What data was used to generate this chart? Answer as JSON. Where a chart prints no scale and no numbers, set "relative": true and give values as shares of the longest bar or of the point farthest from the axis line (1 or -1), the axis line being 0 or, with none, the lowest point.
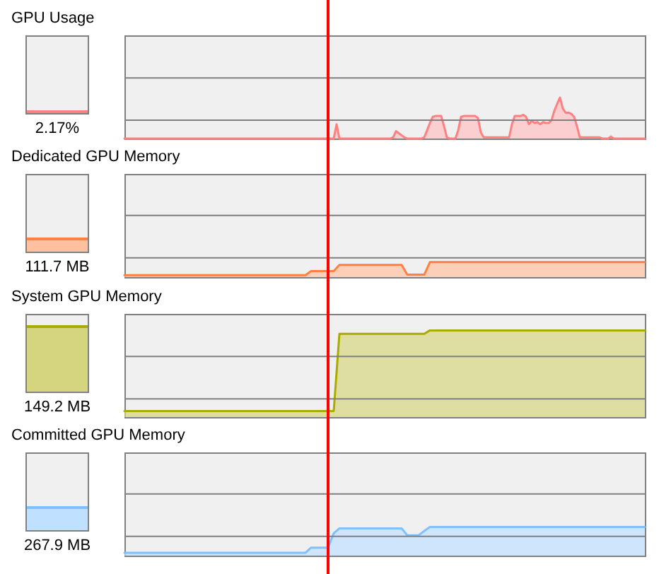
{
  "chart_data": [
    {
      "type": "area",
      "relative": true,
      "title": "GPU Usage",
      "annotations": [
        "2.17%"
      ],
      "color": "#ff8080",
      "ref_lines": [
        {
          "axis": "y",
          "value": 0.45,
          "color": "#808080"
        },
        {
          "axis": "y",
          "value": 1.48,
          "color": "#808080"
        }
      ],
      "categories": [
        null,
        null,
        null,
        null,
        null,
        null,
        null,
        null,
        null,
        null,
        null,
        null,
        null,
        null,
        null,
        null,
        null,
        null,
        null,
        null,
        null,
        null,
        null,
        null,
        null,
        null,
        null,
        null,
        null,
        null,
        null,
        null,
        null,
        null,
        null,
        null,
        null,
        null,
        null,
        null,
        null,
        null,
        null,
        null,
        null,
        null,
        null,
        null,
        null,
        null,
        null,
        null,
        null,
        null,
        null,
        null,
        null,
        null,
        null,
        null,
        null,
        null,
        null,
        null,
        null,
        null,
        null,
        null,
        null,
        null,
        null,
        null,
        null,
        null,
        null,
        null,
        null,
        null,
        null,
        null,
        null,
        null,
        null,
        null,
        null,
        null,
        null,
        null,
        null,
        null,
        null,
        null,
        null,
        null,
        null,
        null,
        null,
        null,
        null,
        null,
        null,
        null,
        null,
        null,
        null,
        null,
        null,
        null,
        null,
        null,
        null,
        null,
        null,
        null,
        null,
        null,
        null,
        null,
        null,
        null,
        null,
        null,
        null,
        null,
        null,
        null,
        null,
        null,
        null,
        null,
        null,
        null,
        null,
        null,
        null,
        null,
        null,
        null,
        null,
        null,
        null,
        null,
        null,
        null,
        null,
        null,
        null,
        null,
        null,
        null,
        null,
        null,
        null,
        null,
        null,
        null,
        null,
        null,
        null,
        null,
        null,
        null,
        null,
        null,
        null,
        null,
        null,
        null,
        null,
        null,
        null,
        null,
        null,
        null,
        null,
        null,
        null,
        null,
        null,
        null,
        null,
        null,
        null,
        null,
        null
      ],
      "values": [
        0,
        0,
        0,
        0,
        0,
        0,
        0,
        0,
        0,
        0,
        0,
        0,
        0,
        0,
        0,
        0,
        0,
        0,
        0,
        0,
        0,
        0,
        0,
        0,
        0,
        0,
        0,
        0,
        0,
        0,
        0,
        0,
        0,
        0,
        0,
        0,
        0,
        0,
        0,
        0,
        0,
        0,
        0,
        0,
        0,
        0,
        0,
        0,
        0,
        0,
        0,
        0,
        0,
        0,
        0,
        0,
        0,
        0,
        0,
        0,
        0,
        0,
        0,
        0,
        0,
        0,
        0,
        0,
        0,
        0,
        0,
        0,
        0,
        0,
        0,
        0.35,
        0,
        0,
        0,
        0,
        0,
        0,
        0,
        0,
        0,
        0,
        0,
        0,
        0,
        0,
        0,
        0,
        0,
        0,
        0,
        0.03,
        0.18,
        0.13,
        0.08,
        0.03,
        0,
        0,
        0,
        0,
        0,
        0,
        0.03,
        0.2,
        0.38,
        0.53,
        0.55,
        0.55,
        0.55,
        0.3,
        0.03,
        0,
        0,
        0,
        0.2,
        0.53,
        0.55,
        0.55,
        0.55,
        0.55,
        0.55,
        0.5,
        0.15,
        0.03,
        0.03,
        0.03,
        0.03,
        0.03,
        0.03,
        0.03,
        0.03,
        0.03,
        0.03,
        0.35,
        0.55,
        0.55,
        0.55,
        0.58,
        0.53,
        0.35,
        0.43,
        0.38,
        0.4,
        0.35,
        0.4,
        0.38,
        0.38,
        0.45,
        0.68,
        0.85,
        1,
        0.73,
        0.63,
        0.63,
        0.6,
        0.53,
        0.3,
        0.03,
        0.03,
        0.03,
        0.03,
        0.03,
        0.03,
        0.03,
        0.03,
        0,
        0,
        0,
        0.05,
        0,
        0,
        0,
        0,
        0,
        0,
        0,
        0,
        0,
        0,
        0,
        0
      ]
    },
    {
      "type": "area",
      "relative": true,
      "title": "Dedicated GPU Memory",
      "annotations": [
        "111.7 MB"
      ],
      "color": "#ff8040",
      "ref_lines": [
        {
          "axis": "y",
          "value": 1.29,
          "color": "#808080"
        },
        {
          "axis": "y",
          "value": 4.12,
          "color": "#808080"
        }
      ],
      "categories": [
        null,
        null,
        null,
        null,
        null,
        null,
        null,
        null,
        null,
        null,
        null,
        null,
        null,
        null,
        null,
        null,
        null,
        null,
        null,
        null,
        null,
        null,
        null,
        null,
        null,
        null,
        null,
        null,
        null,
        null,
        null,
        null,
        null,
        null,
        null,
        null,
        null,
        null,
        null,
        null,
        null,
        null,
        null,
        null,
        null,
        null,
        null,
        null,
        null,
        null,
        null,
        null,
        null,
        null,
        null,
        null,
        null,
        null,
        null,
        null,
        null,
        null,
        null,
        null,
        null,
        null,
        null,
        null,
        null,
        null,
        null,
        null,
        null,
        null,
        null,
        null,
        null,
        null,
        null,
        null,
        null,
        null,
        null,
        null,
        null,
        null,
        null,
        null,
        null,
        null,
        null,
        null,
        null
      ],
      "values": [
        0.13,
        0.13,
        0.13,
        0.13,
        0.13,
        0.13,
        0.13,
        0.13,
        0.13,
        0.13,
        0.13,
        0.13,
        0.13,
        0.13,
        0.13,
        0.13,
        0.13,
        0.13,
        0.13,
        0.13,
        0.13,
        0.13,
        0.13,
        0.13,
        0.13,
        0.13,
        0.13,
        0.13,
        0.13,
        0.13,
        0.13,
        0.13,
        0.13,
        0.4,
        0.4,
        0.4,
        0.4,
        0.4,
        0.81,
        0.81,
        0.81,
        0.81,
        0.81,
        0.81,
        0.81,
        0.81,
        0.81,
        0.81,
        0.81,
        0.81,
        0.16,
        0.16,
        0.16,
        0.16,
        1,
        1,
        1,
        1,
        1,
        1,
        1,
        1,
        1,
        1,
        1,
        1,
        1,
        1,
        1,
        1,
        1,
        1,
        1,
        1,
        1,
        1,
        1,
        1,
        1,
        1,
        1,
        1,
        1,
        1,
        1,
        1,
        1,
        1,
        1,
        1,
        1,
        1,
        1
      ]
    },
    {
      "type": "area",
      "relative": true,
      "title": "System GPU Memory",
      "annotations": [
        "149.2 MB"
      ],
      "color": "#aaaa00",
      "ref_lines": [
        {
          "axis": "y",
          "value": 0.21,
          "color": "#808080"
        },
        {
          "axis": "y",
          "value": 0.7,
          "color": "#808080"
        }
      ],
      "categories": [
        null,
        null,
        null,
        null,
        null,
        null,
        null,
        null,
        null,
        null,
        null,
        null,
        null,
        null,
        null,
        null,
        null,
        null,
        null,
        null,
        null,
        null,
        null,
        null,
        null,
        null,
        null,
        null,
        null,
        null,
        null,
        null,
        null,
        null,
        null,
        null,
        null,
        null,
        null,
        null,
        null,
        null,
        null,
        null,
        null,
        null,
        null,
        null,
        null,
        null,
        null,
        null,
        null,
        null,
        null,
        null,
        null,
        null,
        null,
        null,
        null,
        null,
        null,
        null,
        null,
        null,
        null,
        null,
        null,
        null,
        null,
        null,
        null,
        null,
        null,
        null,
        null,
        null,
        null,
        null,
        null,
        null,
        null,
        null,
        null,
        null,
        null,
        null,
        null,
        null,
        null,
        null,
        null
      ],
      "values": [
        0.07,
        0.07,
        0.07,
        0.07,
        0.07,
        0.07,
        0.07,
        0.07,
        0.07,
        0.07,
        0.07,
        0.07,
        0.07,
        0.07,
        0.07,
        0.07,
        0.07,
        0.07,
        0.07,
        0.07,
        0.07,
        0.07,
        0.07,
        0.07,
        0.07,
        0.07,
        0.07,
        0.07,
        0.07,
        0.07,
        0.07,
        0.07,
        0.07,
        0.07,
        0.07,
        0.07,
        0.07,
        0.07,
        0.96,
        0.96,
        0.96,
        0.96,
        0.96,
        0.96,
        0.96,
        0.96,
        0.96,
        0.96,
        0.96,
        0.96,
        0.96,
        0.96,
        0.96,
        0.96,
        1,
        1,
        1,
        1,
        1,
        1,
        1,
        1,
        1,
        1,
        1,
        1,
        1,
        1,
        1,
        1,
        1,
        1,
        1,
        1,
        1,
        1,
        1,
        1,
        1,
        1,
        1,
        1,
        1,
        1,
        1,
        1,
        1,
        1,
        1,
        1,
        1,
        1,
        1
      ]
    },
    {
      "type": "area",
      "relative": true,
      "title": "Committed GPU Memory",
      "annotations": [
        "267.9 MB"
      ],
      "color": "#80c0ff",
      "ref_lines": [
        {
          "axis": "y",
          "value": 0.67,
          "color": "#808080"
        },
        {
          "axis": "y",
          "value": 2.15,
          "color": "#808080"
        }
      ],
      "categories": [
        null,
        null,
        null,
        null,
        null,
        null,
        null,
        null,
        null,
        null,
        null,
        null,
        null,
        null,
        null,
        null,
        null,
        null,
        null,
        null,
        null,
        null,
        null,
        null,
        null,
        null,
        null,
        null,
        null,
        null,
        null,
        null,
        null,
        null,
        null,
        null,
        null,
        null,
        null,
        null,
        null,
        null,
        null,
        null,
        null,
        null,
        null,
        null,
        null,
        null,
        null,
        null,
        null,
        null,
        null,
        null,
        null,
        null,
        null,
        null,
        null,
        null,
        null,
        null,
        null,
        null,
        null,
        null,
        null,
        null,
        null,
        null,
        null,
        null,
        null,
        null,
        null,
        null,
        null,
        null,
        null,
        null,
        null,
        null,
        null,
        null,
        null,
        null,
        null,
        null,
        null,
        null,
        null
      ],
      "values": [
        0.1,
        0.1,
        0.1,
        0.1,
        0.1,
        0.1,
        0.1,
        0.1,
        0.1,
        0.1,
        0.1,
        0.1,
        0.1,
        0.1,
        0.1,
        0.1,
        0.1,
        0.1,
        0.1,
        0.1,
        0.1,
        0.1,
        0.1,
        0.1,
        0.1,
        0.1,
        0.1,
        0.1,
        0.1,
        0.1,
        0.1,
        0.1,
        0.1,
        0.28,
        0.28,
        0.28,
        0.28,
        0.78,
        0.95,
        0.95,
        0.95,
        0.95,
        0.95,
        0.95,
        0.95,
        0.95,
        0.95,
        0.95,
        0.95,
        0.95,
        0.71,
        0.71,
        0.71,
        0.86,
        1,
        1,
        1,
        1,
        1,
        1,
        1,
        1,
        1,
        1,
        1,
        1,
        1,
        1,
        1,
        1,
        1,
        1,
        1,
        1,
        1,
        1,
        1,
        1,
        1,
        1,
        1,
        1,
        1,
        1,
        1,
        1,
        1,
        1,
        1,
        1,
        1,
        1,
        1
      ]
    }
  ]
}
